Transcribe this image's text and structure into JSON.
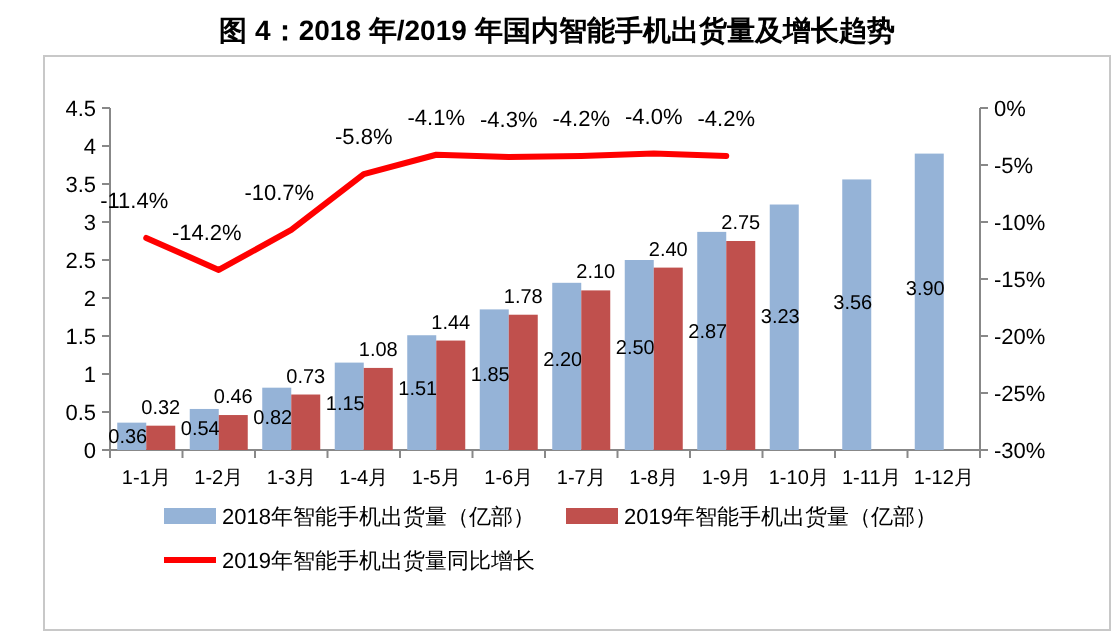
{
  "chart_data": {
    "type": "bar",
    "title": "图 4：2018 年/2019 年国内智能手机出货量及增长趋势",
    "categories": [
      "1-1月",
      "1-2月",
      "1-3月",
      "1-4月",
      "1-5月",
      "1-6月",
      "1-7月",
      "1-8月",
      "1-9月",
      "1-10月",
      "1-11月",
      "1-12月"
    ],
    "series": [
      {
        "name": "2018年智能手机出货量（亿部）",
        "color": "#95b3d7",
        "values": [
          0.36,
          0.54,
          0.82,
          1.15,
          1.51,
          1.85,
          2.2,
          2.5,
          2.87,
          3.23,
          3.56,
          3.9
        ],
        "value_labels": [
          "0.36",
          "0.54",
          "0.82",
          "1.15",
          "1.51",
          "1.85",
          "2.20",
          "2.50",
          "2.87",
          "3.23",
          "3.56",
          "3.90"
        ]
      },
      {
        "name": "2019年智能手机出货量（亿部）",
        "color": "#c0504d",
        "values": [
          0.32,
          0.46,
          0.73,
          1.08,
          1.44,
          1.78,
          2.1,
          2.4,
          2.75,
          null,
          null,
          null
        ],
        "value_labels": [
          "0.32",
          "0.46",
          "0.73",
          "1.08",
          "1.44",
          "1.78",
          "2.10",
          "2.40",
          "2.75",
          null,
          null,
          null
        ]
      },
      {
        "name": "2019年智能手机出货量同比增长",
        "type": "line",
        "axis": "y2",
        "color": "#ff0000",
        "values": [
          -11.4,
          -14.2,
          -10.7,
          -5.8,
          -4.1,
          -4.3,
          -4.2,
          -4.0,
          -4.2,
          null,
          null,
          null
        ],
        "value_labels": [
          "-11.4%",
          "-14.2%",
          "-10.7%",
          "-5.8%",
          "-4.1%",
          "-4.3%",
          "-4.2%",
          "-4.0%",
          "-4.2%",
          null,
          null,
          null
        ]
      }
    ],
    "ylim": [
      0,
      4.5
    ],
    "yticks": [
      0,
      0.5,
      1,
      1.5,
      2,
      2.5,
      3,
      3.5,
      4,
      4.5
    ],
    "y2lim": [
      -30,
      0
    ],
    "y2ticks": [
      {
        "value": -30,
        "label": "-30%"
      },
      {
        "value": -25,
        "label": "-25%"
      },
      {
        "value": -20,
        "label": "-20%"
      },
      {
        "value": -15,
        "label": "-15%"
      },
      {
        "value": -10,
        "label": "-10%"
      },
      {
        "value": -5,
        "label": "-5%"
      },
      {
        "value": 0,
        "label": "0%"
      }
    ],
    "legend": "bottom",
    "grid": false
  }
}
